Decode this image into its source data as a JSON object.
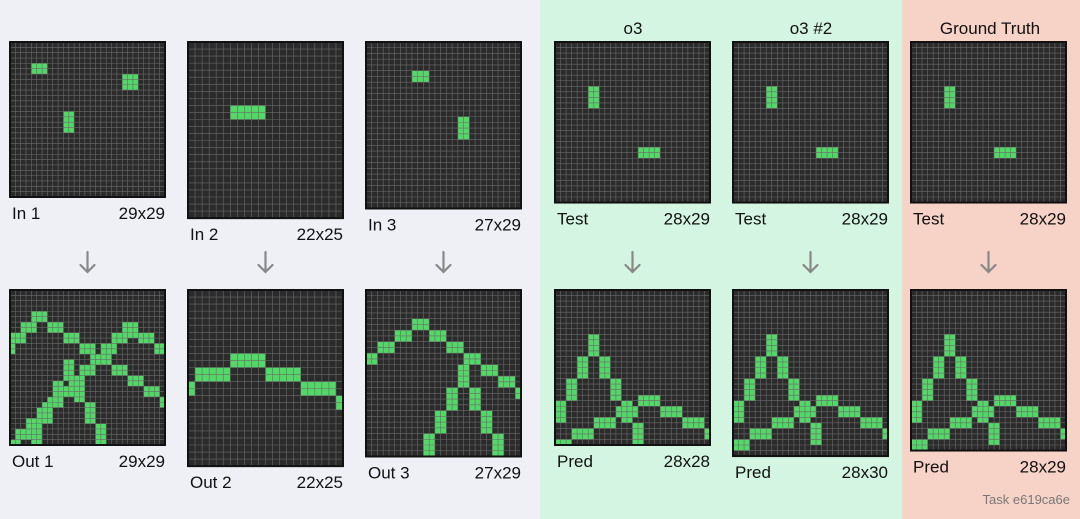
{
  "headers": [
    "o3",
    "o3 #2",
    "Ground Truth"
  ],
  "panels": [
    {
      "input": {
        "label": "In 1",
        "size": "29x29"
      },
      "output": {
        "label": "Out 1",
        "size": "29x29"
      }
    },
    {
      "input": {
        "label": "In 2",
        "size": "22x25"
      },
      "output": {
        "label": "Out 2",
        "size": "22x25"
      }
    },
    {
      "input": {
        "label": "In 3",
        "size": "27x29"
      },
      "output": {
        "label": "Out 3",
        "size": "27x29"
      }
    },
    {
      "input": {
        "label": "Test",
        "size": "28x29"
      },
      "output": {
        "label": "Pred",
        "size": "28x28"
      }
    },
    {
      "input": {
        "label": "Test",
        "size": "28x29"
      },
      "output": {
        "label": "Pred",
        "size": "28x30"
      }
    },
    {
      "input": {
        "label": "Test",
        "size": "28x29"
      },
      "output": {
        "label": "Pred",
        "size": "28x29"
      }
    }
  ],
  "footer": "Task e619ca6e"
}
